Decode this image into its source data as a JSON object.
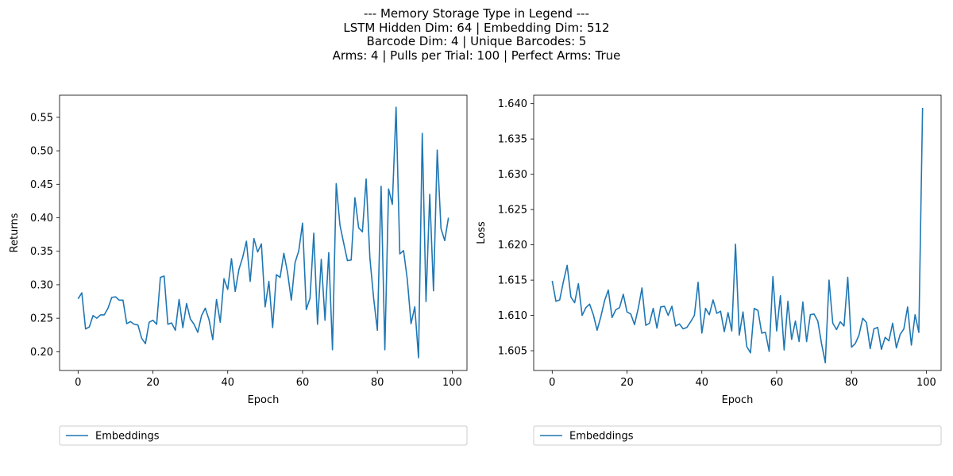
{
  "suptitle": {
    "line1": "--- Memory Storage Type in Legend ---",
    "line2": "LSTM Hidden Dim: 64 | Embedding Dim: 512",
    "line3": "Barcode Dim: 4 | Unique Barcodes: 5",
    "line4": "Arms: 4 | Pulls per Trial: 100 | Perfect Arms: True"
  },
  "colors": {
    "series": "#1f77b4"
  },
  "chart_data": [
    {
      "type": "line",
      "xlabel": "Epoch",
      "ylabel": "Returns",
      "xlim": [
        -4.95,
        103.95
      ],
      "ylim": [
        0.172,
        0.583
      ],
      "xticks": [
        0,
        20,
        40,
        60,
        80,
        100
      ],
      "xtick_labels": [
        "0",
        "20",
        "40",
        "60",
        "80",
        "100"
      ],
      "yticks": [
        0.2,
        0.25,
        0.3,
        0.35,
        0.4,
        0.45,
        0.5,
        0.55
      ],
      "ytick_labels": [
        "0.20",
        "0.25",
        "0.30",
        "0.35",
        "0.40",
        "0.45",
        "0.50",
        "0.55"
      ],
      "grid": false,
      "legend_position": "below",
      "series": [
        {
          "name": "Embeddings",
          "x": [
            0,
            1,
            2,
            3,
            4,
            5,
            6,
            7,
            8,
            9,
            10,
            11,
            12,
            13,
            14,
            15,
            16,
            17,
            18,
            19,
            20,
            21,
            22,
            23,
            24,
            25,
            26,
            27,
            28,
            29,
            30,
            31,
            32,
            33,
            34,
            35,
            36,
            37,
            38,
            39,
            40,
            41,
            42,
            43,
            44,
            45,
            46,
            47,
            48,
            49,
            50,
            51,
            52,
            53,
            54,
            55,
            56,
            57,
            58,
            59,
            60,
            61,
            62,
            63,
            64,
            65,
            66,
            67,
            68,
            69,
            70,
            71,
            72,
            73,
            74,
            75,
            76,
            77,
            78,
            79,
            80,
            81,
            82,
            83,
            84,
            85,
            86,
            87,
            88,
            89,
            90,
            91,
            92,
            93,
            94,
            95,
            96,
            97,
            98,
            99
          ],
          "values": [
            0.279,
            0.288,
            0.234,
            0.237,
            0.254,
            0.25,
            0.255,
            0.255,
            0.265,
            0.281,
            0.282,
            0.277,
            0.277,
            0.242,
            0.245,
            0.241,
            0.24,
            0.22,
            0.212,
            0.244,
            0.247,
            0.241,
            0.311,
            0.313,
            0.241,
            0.243,
            0.232,
            0.278,
            0.236,
            0.272,
            0.249,
            0.241,
            0.229,
            0.254,
            0.265,
            0.248,
            0.218,
            0.278,
            0.244,
            0.309,
            0.293,
            0.339,
            0.29,
            0.323,
            0.341,
            0.365,
            0.305,
            0.369,
            0.349,
            0.361,
            0.267,
            0.305,
            0.236,
            0.315,
            0.311,
            0.347,
            0.318,
            0.277,
            0.333,
            0.351,
            0.392,
            0.263,
            0.28,
            0.377,
            0.241,
            0.338,
            0.247,
            0.348,
            0.203,
            0.451,
            0.389,
            0.362,
            0.336,
            0.337,
            0.43,
            0.385,
            0.379,
            0.458,
            0.34,
            0.28,
            0.232,
            0.447,
            0.203,
            0.443,
            0.42,
            0.565,
            0.346,
            0.351,
            0.308,
            0.242,
            0.267,
            0.191,
            0.526,
            0.275,
            0.435,
            0.291,
            0.501,
            0.384,
            0.366,
            0.4
          ]
        }
      ]
    },
    {
      "type": "line",
      "xlabel": "Epoch",
      "ylabel": "Loss",
      "xlim": [
        -4.95,
        103.95
      ],
      "ylim": [
        1.6022,
        1.6412
      ],
      "xticks": [
        0,
        20,
        40,
        60,
        80,
        100
      ],
      "xtick_labels": [
        "0",
        "20",
        "40",
        "60",
        "80",
        "100"
      ],
      "yticks": [
        1.605,
        1.61,
        1.615,
        1.62,
        1.625,
        1.63,
        1.635,
        1.64
      ],
      "ytick_labels": [
        "1.605",
        "1.610",
        "1.615",
        "1.620",
        "1.625",
        "1.630",
        "1.635",
        "1.640"
      ],
      "grid": false,
      "legend_position": "below",
      "series": [
        {
          "name": "Embeddings",
          "x": [
            0,
            1,
            2,
            3,
            4,
            5,
            6,
            7,
            8,
            9,
            10,
            11,
            12,
            13,
            14,
            15,
            16,
            17,
            18,
            19,
            20,
            21,
            22,
            23,
            24,
            25,
            26,
            27,
            28,
            29,
            30,
            31,
            32,
            33,
            34,
            35,
            36,
            37,
            38,
            39,
            40,
            41,
            42,
            43,
            44,
            45,
            46,
            47,
            48,
            49,
            50,
            51,
            52,
            53,
            54,
            55,
            56,
            57,
            58,
            59,
            60,
            61,
            62,
            63,
            64,
            65,
            66,
            67,
            68,
            69,
            70,
            71,
            72,
            73,
            74,
            75,
            76,
            77,
            78,
            79,
            80,
            81,
            82,
            83,
            84,
            85,
            86,
            87,
            88,
            89,
            90,
            91,
            92,
            93,
            94,
            95,
            96,
            97,
            98,
            99
          ],
          "values": [
            1.6149,
            1.612,
            1.6122,
            1.6148,
            1.6171,
            1.6126,
            1.6118,
            1.6145,
            1.61,
            1.6111,
            1.6116,
            1.6101,
            1.6079,
            1.6098,
            1.6121,
            1.6136,
            1.6097,
            1.6108,
            1.6111,
            1.613,
            1.6105,
            1.6102,
            1.6087,
            1.611,
            1.6139,
            1.6086,
            1.6089,
            1.611,
            1.6082,
            1.6112,
            1.6113,
            1.61,
            1.6113,
            1.6085,
            1.6088,
            1.6081,
            1.6083,
            1.6091,
            1.61,
            1.6147,
            1.6075,
            1.611,
            1.6101,
            1.6122,
            1.6103,
            1.6106,
            1.6077,
            1.6104,
            1.6078,
            1.6201,
            1.6072,
            1.6105,
            1.6056,
            1.6047,
            1.611,
            1.6107,
            1.6075,
            1.6076,
            1.6049,
            1.6155,
            1.6078,
            1.6128,
            1.6051,
            1.612,
            1.6066,
            1.6092,
            1.6063,
            1.6119,
            1.6063,
            1.6101,
            1.6102,
            1.6092,
            1.606,
            1.6033,
            1.615,
            1.6089,
            1.608,
            1.6091,
            1.6085,
            1.6154,
            1.6055,
            1.606,
            1.6072,
            1.6096,
            1.609,
            1.6053,
            1.6081,
            1.6083,
            1.6052,
            1.6069,
            1.6064,
            1.6089,
            1.6054,
            1.6073,
            1.6081,
            1.6112,
            1.6058,
            1.6101,
            1.6076,
            1.6394
          ]
        }
      ]
    }
  ]
}
